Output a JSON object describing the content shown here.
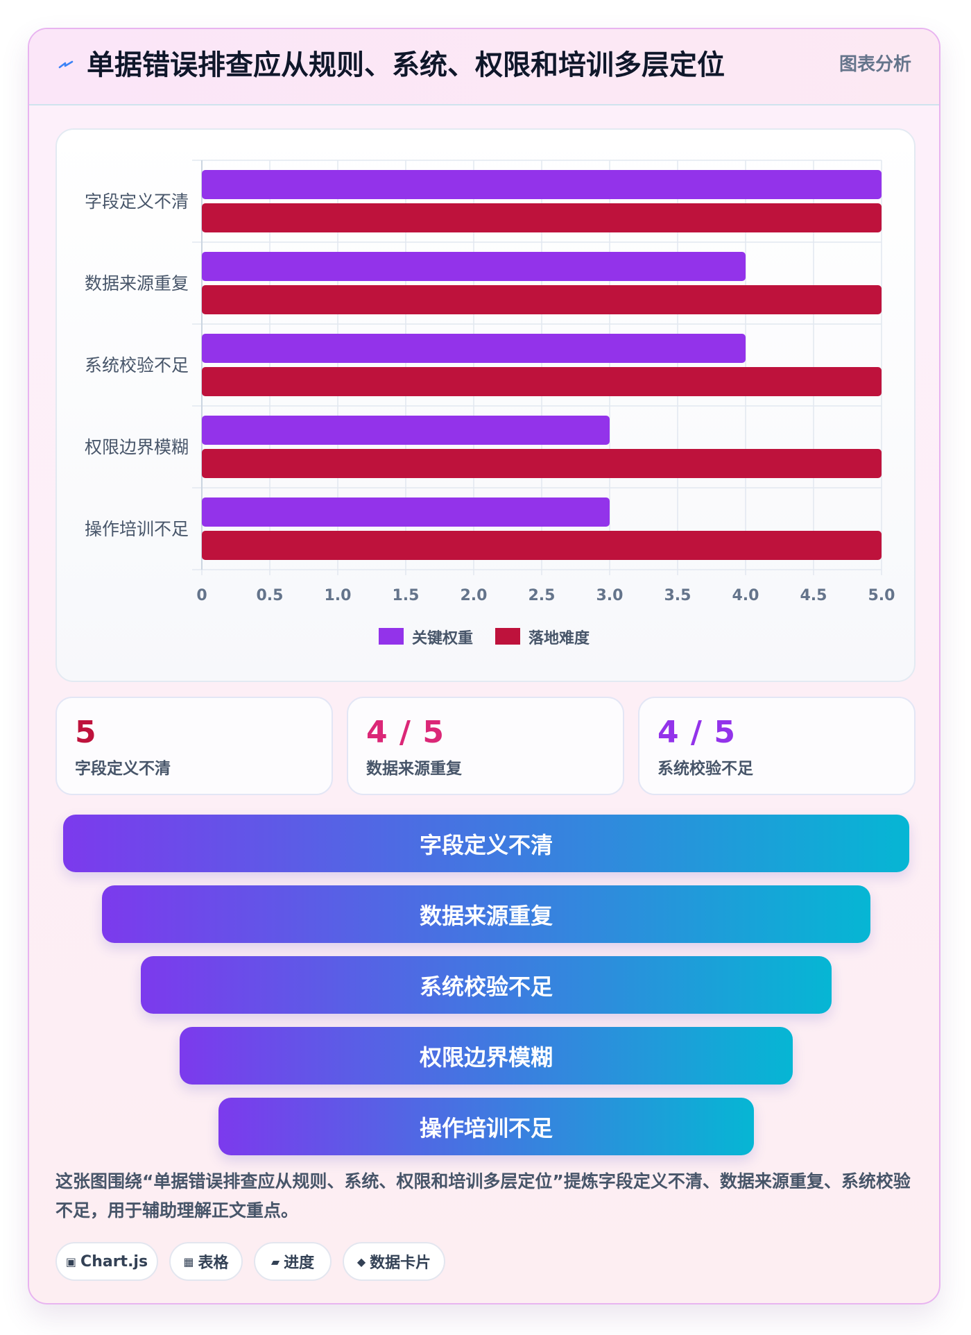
{
  "header": {
    "title": "单据错误排查应从规则、系统、权限和培训多层定位",
    "tag": "图表分析",
    "icon": "lightning-icon"
  },
  "chart_data": {
    "type": "bar",
    "orientation": "horizontal",
    "categories": [
      "字段定义不清",
      "数据来源重复",
      "系统校验不足",
      "权限边界模糊",
      "操作培训不足"
    ],
    "series": [
      {
        "name": "关键权重",
        "values": [
          5,
          4,
          4,
          3,
          3
        ],
        "color": "#9333ea"
      },
      {
        "name": "落地难度",
        "values": [
          5,
          5,
          5,
          5,
          5
        ],
        "color": "#be123c"
      }
    ],
    "xlim": [
      0,
      5
    ],
    "x_ticks": [
      "0",
      "0.5",
      "1.0",
      "1.5",
      "2.0",
      "2.5",
      "3.0",
      "3.5",
      "4.0",
      "4.5",
      "5.0"
    ],
    "grid": true,
    "legend_position": "bottom"
  },
  "stats": [
    {
      "value": "5",
      "label": "字段定义不清",
      "color": "#be123c"
    },
    {
      "value": "4 / 5",
      "label": "数据来源重复",
      "color": "#db2777"
    },
    {
      "value": "4 / 5",
      "label": "系统校验不足",
      "color": "#9333ea"
    }
  ],
  "funnel": {
    "items": [
      "字段定义不清",
      "数据来源重复",
      "系统校验不足",
      "权限边界模糊",
      "操作培训不足"
    ],
    "gradient_start": "#7c3aed",
    "gradient_end": "#06b6d4"
  },
  "summary": "这张图围绕“单据错误排查应从规则、系统、权限和培训多层定位”提炼字段定义不清、数据来源重复、系统校验不足，用于辅助理解正文重点。",
  "chips": [
    {
      "icon": "chip-square-icon",
      "glyph": "▣",
      "label": "Chart.js"
    },
    {
      "icon": "table-icon",
      "glyph": "▦",
      "label": "表格"
    },
    {
      "icon": "progress-icon",
      "glyph": "▰",
      "label": "进度"
    },
    {
      "icon": "diamond-icon",
      "glyph": "◆",
      "label": "数据卡片"
    }
  ]
}
